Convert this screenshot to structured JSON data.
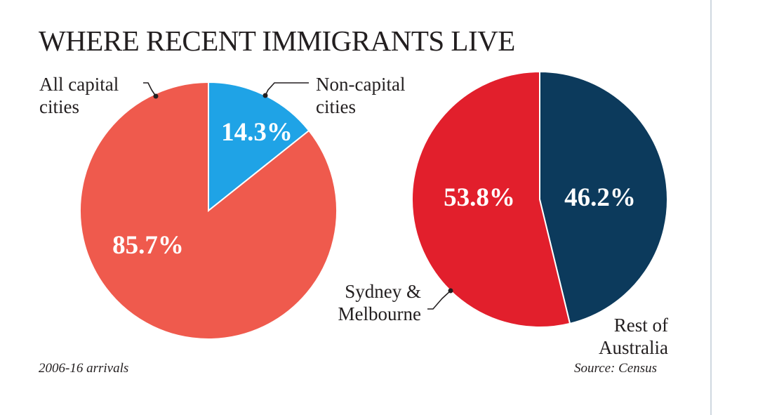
{
  "title": "WHERE RECENT IMMIGRANTS LIVE",
  "footnote_left": "2006-16 arrivals",
  "footnote_right": "Source: Census",
  "colors": {
    "capital": "#ef5a4d",
    "noncapital": "#1fa3e6",
    "sydney_melbourne": "#e21f2c",
    "rest": "#0c3a5c",
    "leader": "#231f20"
  },
  "chart_data": [
    {
      "type": "pie",
      "title": "",
      "slices": [
        {
          "label": "Non-capital\ncities",
          "value": 14.3,
          "value_label": "14.3%",
          "color": "#1fa3e6"
        },
        {
          "label": "All capital\ncities",
          "value": 85.7,
          "value_label": "85.7%",
          "color": "#ef5a4d"
        }
      ]
    },
    {
      "type": "pie",
      "title": "",
      "slices": [
        {
          "label": "Rest of\nAustralia",
          "value": 46.2,
          "value_label": "46.2%",
          "color": "#0c3a5c"
        },
        {
          "label": "Sydney &\nMelbourne",
          "value": 53.8,
          "value_label": "53.8%",
          "color": "#e21f2c"
        }
      ]
    }
  ]
}
